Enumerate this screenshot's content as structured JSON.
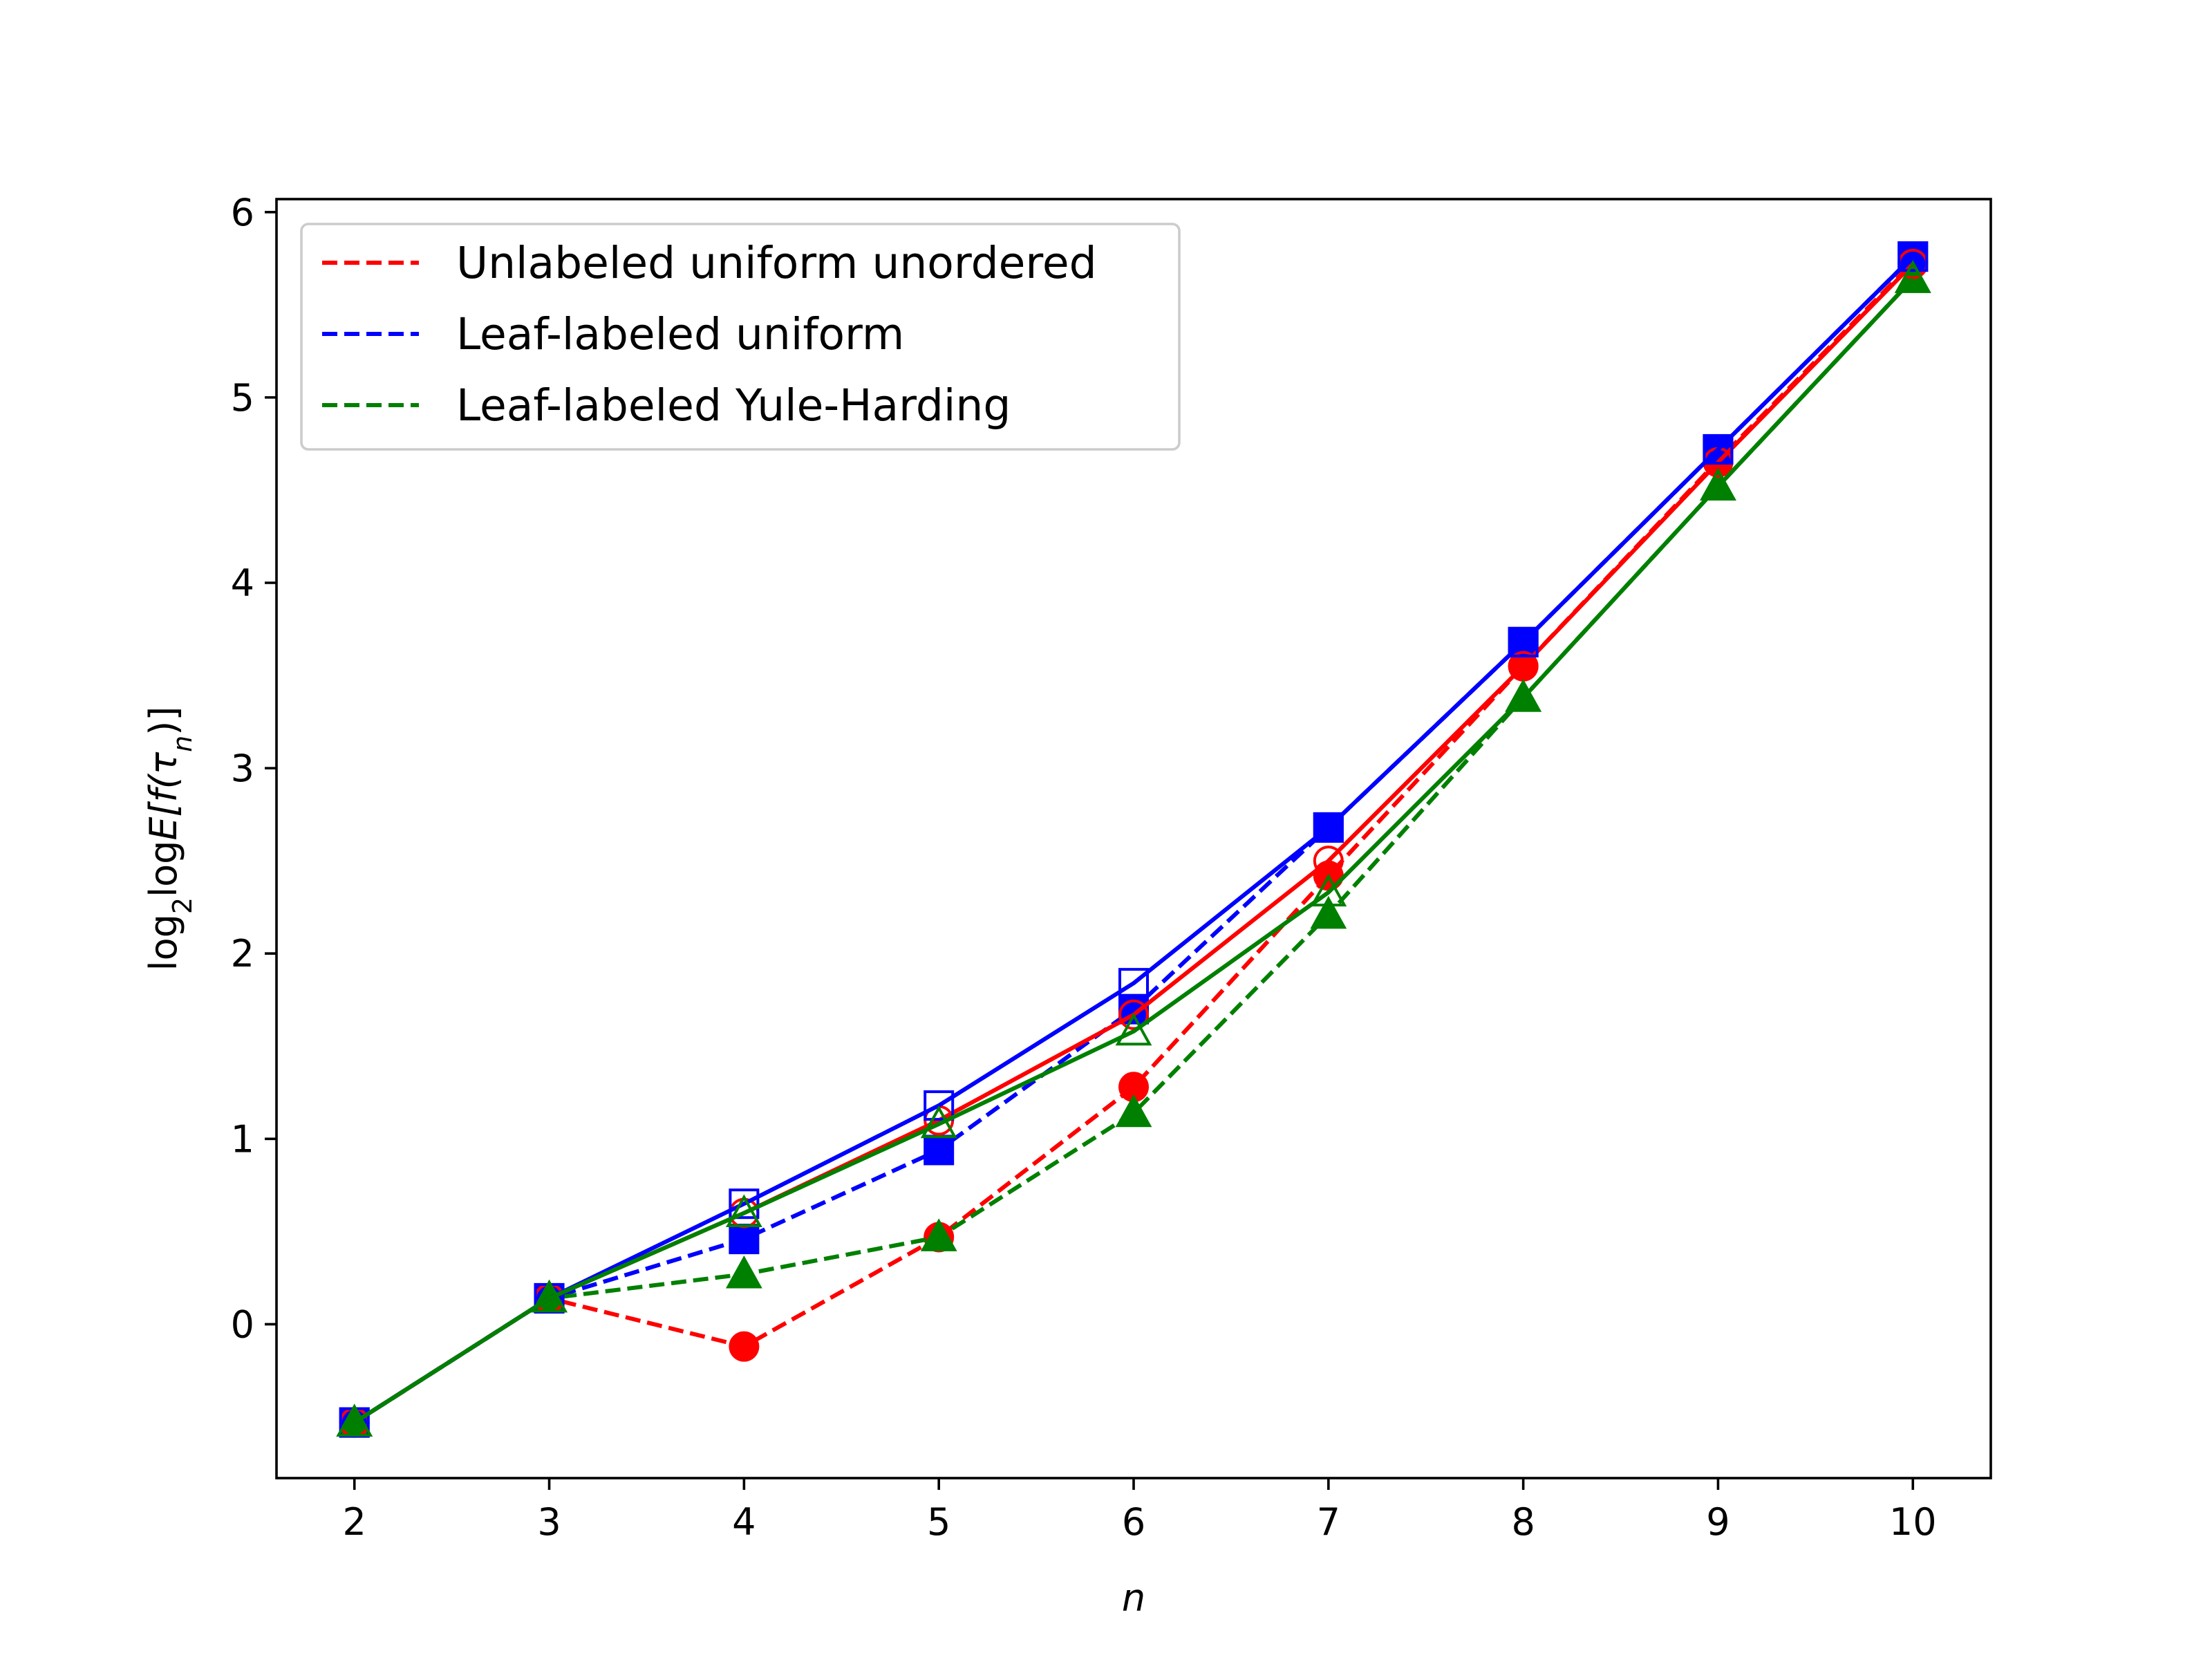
{
  "chart_data": {
    "type": "line",
    "xlabel": "n",
    "ylabel_parts": {
      "log": "log",
      "sub": "2",
      "rest": "log",
      "expectation": "E[f(τ",
      "inner_sub": "n",
      "close": ")]"
    },
    "xlim": [
      1.6,
      10.4
    ],
    "ylim": [
      -0.83,
      6.07
    ],
    "xticks": [
      2,
      3,
      4,
      5,
      6,
      7,
      8,
      9,
      10
    ],
    "yticks": [
      0,
      1,
      2,
      3,
      4,
      5,
      6
    ],
    "legend": {
      "placement": "top-left",
      "entries": [
        {
          "label": "Unlabeled uniform unordered",
          "color": "#ff0000"
        },
        {
          "label": "Leaf-labeled uniform",
          "color": "#0000ff"
        },
        {
          "label": "Leaf-labeled Yule-Harding",
          "color": "#008000"
        }
      ]
    },
    "series": [
      {
        "color": "#ff0000",
        "marker": "circle",
        "fill": "none",
        "dash": "solid",
        "x": [
          2,
          3,
          4,
          5,
          6,
          7,
          8,
          9,
          10
        ],
        "y": [
          -0.53,
          0.14,
          0.6,
          1.1,
          1.67,
          2.5,
          3.55,
          4.65,
          5.72
        ]
      },
      {
        "color": "#0000ff",
        "marker": "square",
        "fill": "none",
        "dash": "solid",
        "x": [
          2,
          3,
          4,
          5,
          6,
          7,
          8,
          9,
          10
        ],
        "y": [
          -0.53,
          0.14,
          0.65,
          1.18,
          1.84,
          2.68,
          3.68,
          4.72,
          5.76
        ]
      },
      {
        "color": "#008000",
        "marker": "triangle",
        "fill": "none",
        "dash": "solid",
        "x": [
          2,
          3,
          4,
          5,
          6,
          7,
          8,
          9,
          10
        ],
        "y": [
          -0.53,
          0.14,
          0.6,
          1.08,
          1.58,
          2.33,
          3.38,
          4.52,
          5.64
        ]
      },
      {
        "color": "#ff0000",
        "marker": "circle",
        "fill": "solid",
        "dash": "dashed",
        "x": [
          2,
          3,
          4,
          5,
          6,
          7,
          8,
          9,
          10
        ],
        "y": [
          -0.53,
          0.14,
          -0.12,
          0.47,
          1.28,
          2.42,
          3.55,
          4.66,
          5.73
        ]
      },
      {
        "color": "#0000ff",
        "marker": "square",
        "fill": "solid",
        "dash": "dashed",
        "x": [
          2,
          3,
          4,
          5,
          6,
          7,
          8,
          9,
          10
        ],
        "y": [
          -0.53,
          0.14,
          0.46,
          0.94,
          1.7,
          2.68,
          3.68,
          4.72,
          5.76
        ]
      },
      {
        "color": "#008000",
        "marker": "triangle",
        "fill": "solid",
        "dash": "dashed",
        "x": [
          2,
          3,
          4,
          5,
          6,
          7,
          8,
          9,
          10
        ],
        "y": [
          -0.53,
          0.14,
          0.27,
          0.47,
          1.14,
          2.21,
          3.38,
          4.52,
          5.64
        ]
      }
    ]
  }
}
